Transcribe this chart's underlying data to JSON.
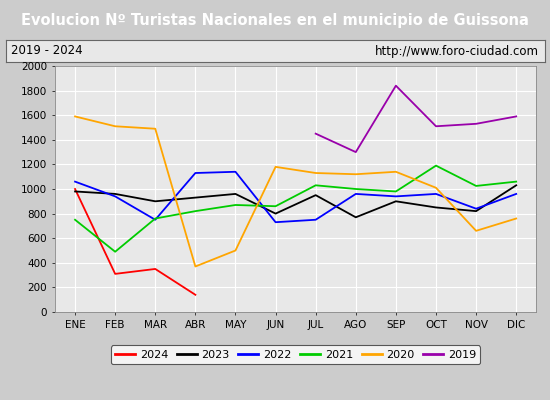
{
  "title": "Evolucion Nº Turistas Nacionales en el municipio de Guissona",
  "subtitle_left": "2019 - 2024",
  "subtitle_right": "http://www.foro-ciudad.com",
  "months": [
    "ENE",
    "FEB",
    "MAR",
    "ABR",
    "MAY",
    "JUN",
    "JUL",
    "AGO",
    "SEP",
    "OCT",
    "NOV",
    "DIC"
  ],
  "series": {
    "2024": [
      1000,
      310,
      350,
      140,
      null,
      null,
      null,
      null,
      null,
      null,
      null,
      null
    ],
    "2023": [
      980,
      960,
      900,
      930,
      960,
      800,
      950,
      770,
      900,
      850,
      820,
      1030
    ],
    "2022": [
      1060,
      940,
      750,
      1130,
      1140,
      730,
      750,
      960,
      940,
      960,
      840,
      960
    ],
    "2021": [
      750,
      490,
      760,
      820,
      870,
      860,
      1030,
      1000,
      980,
      1190,
      1025,
      1060
    ],
    "2020": [
      1590,
      1510,
      1490,
      370,
      500,
      1180,
      1130,
      1120,
      1140,
      1010,
      660,
      760
    ],
    "2019": [
      null,
      null,
      null,
      null,
      null,
      null,
      1450,
      1300,
      1840,
      1510,
      1530,
      1590
    ]
  },
  "colors": {
    "2024": "#ff0000",
    "2023": "#000000",
    "2022": "#0000ff",
    "2021": "#00cc00",
    "2020": "#ffa500",
    "2019": "#9900aa"
  },
  "ylim": [
    0,
    2000
  ],
  "yticks": [
    0,
    200,
    400,
    600,
    800,
    1000,
    1200,
    1400,
    1600,
    1800,
    2000
  ],
  "title_bg_color": "#5588cc",
  "title_text_color": "#ffffff",
  "subtitle_bg_color": "#e8e8e8",
  "plot_bg_color": "#e8e8e8",
  "outer_bg_color": "#cccccc",
  "border_color": "#999999"
}
